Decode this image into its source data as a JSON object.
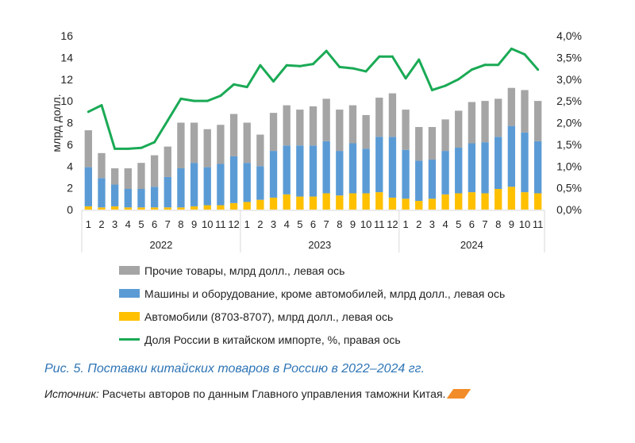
{
  "chart_data": {
    "type": "bar",
    "stacked": true,
    "y_left_label": "млрд долл.",
    "y_left_ticks": [
      "0",
      "2",
      "4",
      "6",
      "8",
      "10",
      "12",
      "14",
      "16"
    ],
    "y_left_range": [
      0,
      16
    ],
    "y_right_ticks": [
      "0,0%",
      "0,5%",
      "1,0%",
      "1,5%",
      "2,0%",
      "2,5%",
      "3,0%",
      "3,5%",
      "4,0%"
    ],
    "y_right_range": [
      0,
      4
    ],
    "years": [
      {
        "label": "2022",
        "months": 12
      },
      {
        "label": "2023",
        "months": 12
      },
      {
        "label": "2024",
        "months": 11
      }
    ],
    "categories": [
      "1",
      "2",
      "3",
      "4",
      "5",
      "6",
      "7",
      "8",
      "9",
      "10",
      "11",
      "12",
      "1",
      "2",
      "3",
      "4",
      "5",
      "6",
      "7",
      "8",
      "9",
      "10",
      "11",
      "12",
      "1",
      "2",
      "3",
      "4",
      "5",
      "6",
      "7",
      "8",
      "9",
      "10",
      "11"
    ],
    "series": [
      {
        "name": "Автомобили (8703-8707), млрд долл., левая ось",
        "color": "#ffc000",
        "kind": "bar",
        "values": [
          0.3,
          0.2,
          0.3,
          0.2,
          0.2,
          0.2,
          0.2,
          0.2,
          0.3,
          0.4,
          0.4,
          0.6,
          0.7,
          0.9,
          1.1,
          1.4,
          1.2,
          1.2,
          1.5,
          1.3,
          1.5,
          1.5,
          1.6,
          1.1,
          1.0,
          0.8,
          1.0,
          1.4,
          1.5,
          1.6,
          1.5,
          1.9,
          2.1,
          1.6,
          1.5
        ]
      },
      {
        "name": "Машины и оборудование, кроме автомобилей, млрд долл., левая ось",
        "color": "#5b9bd5",
        "kind": "bar",
        "values": [
          3.6,
          2.7,
          2.0,
          1.7,
          1.7,
          1.9,
          2.8,
          3.6,
          4.0,
          3.5,
          3.8,
          4.3,
          3.6,
          3.1,
          4.3,
          4.5,
          4.7,
          4.7,
          4.8,
          4.1,
          4.6,
          4.1,
          5.1,
          5.6,
          4.5,
          3.7,
          3.6,
          4.0,
          4.2,
          4.5,
          4.7,
          4.8,
          5.6,
          5.5,
          4.8
        ]
      },
      {
        "name": "Прочие товары, млрд долл., левая ось",
        "color": "#a5a5a5",
        "kind": "bar",
        "values": [
          3.4,
          2.3,
          1.5,
          1.9,
          2.4,
          2.9,
          2.8,
          4.2,
          3.7,
          3.5,
          3.6,
          3.9,
          3.7,
          2.9,
          3.5,
          3.7,
          3.3,
          3.6,
          3.9,
          3.8,
          3.5,
          3.1,
          3.6,
          4.0,
          3.7,
          3.1,
          3.0,
          2.9,
          3.4,
          3.8,
          3.8,
          3.5,
          3.5,
          3.9,
          3.7
        ]
      },
      {
        "name": "Доля России в китайском импорте, %, правая ось",
        "color": "#1aaa55",
        "kind": "line",
        "values": [
          2.25,
          2.4,
          1.4,
          1.4,
          1.42,
          1.55,
          2.05,
          2.55,
          2.5,
          2.5,
          2.62,
          2.88,
          2.82,
          3.32,
          2.95,
          3.32,
          3.3,
          3.35,
          3.65,
          3.28,
          3.25,
          3.18,
          3.52,
          3.52,
          3.02,
          3.45,
          2.75,
          2.85,
          3.0,
          3.22,
          3.33,
          3.33,
          3.7,
          3.57,
          3.22
        ]
      }
    ]
  },
  "caption": "Рис. 5. Поставки китайских товаров в Россию в 2022–2024 гг.",
  "source_label": "Источник:",
  "source_text": " Расчеты авторов по данным Главного управления таможни Китая.",
  "colors": {
    "caption": "#2f75b5",
    "axis": "#d9d9d9",
    "text": "#222222"
  }
}
